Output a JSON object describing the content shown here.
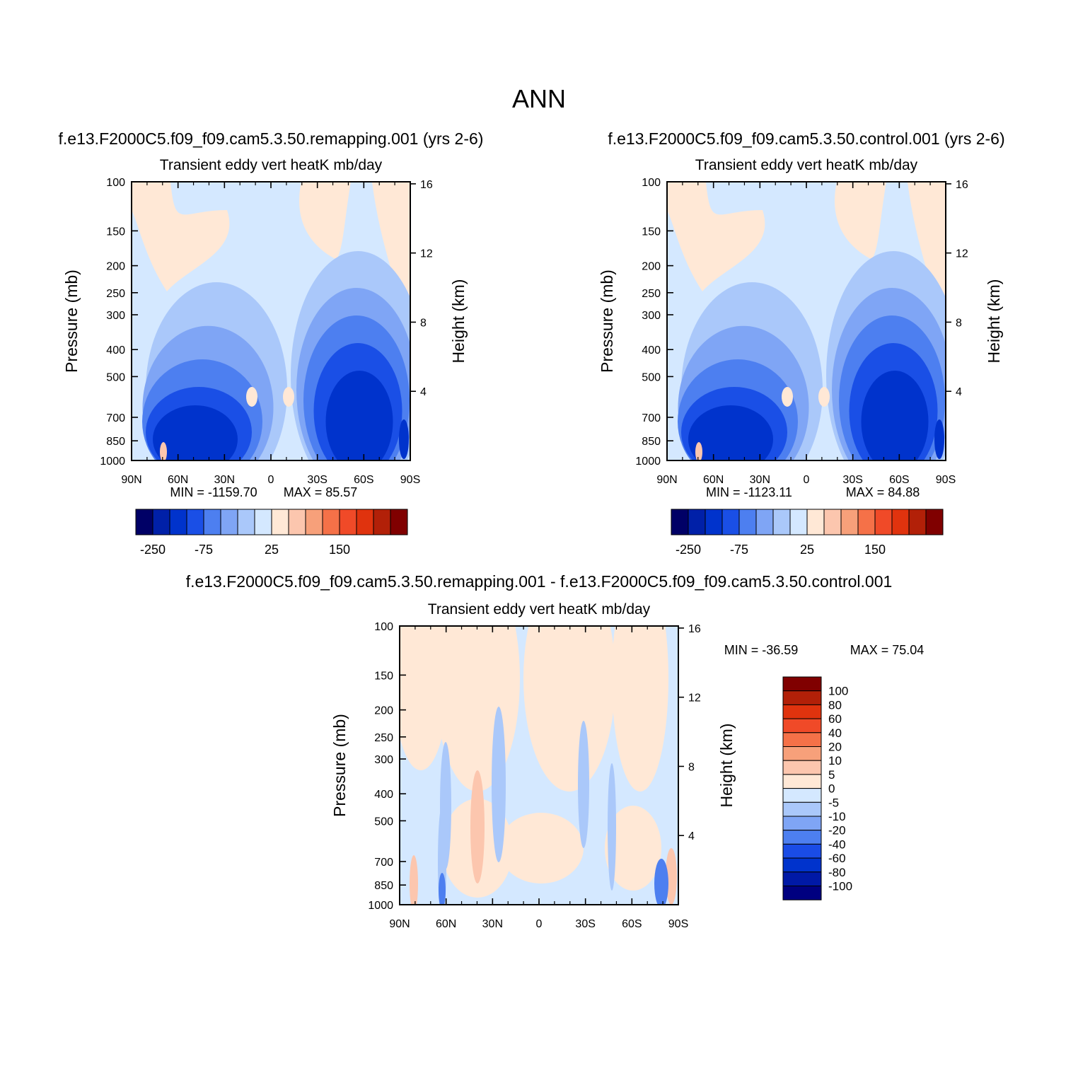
{
  "page_title": "ANN",
  "colors": {
    "main_scale": [
      "#000066",
      "#0020a8",
      "#0033cc",
      "#1a4fe6",
      "#4d7ff0",
      "#7fa5f5",
      "#aac8fa",
      "#d4e8ff",
      "#ffe8d6",
      "#fcc6ae",
      "#f7a07a",
      "#f57148",
      "#f04a28",
      "#e0330e",
      "#b22008",
      "#800000"
    ],
    "diff_scale": [
      "#000080",
      "#0019a6",
      "#0033cc",
      "#1a4ce6",
      "#4d7ff0",
      "#7fa5f5",
      "#aac8fa",
      "#d4e8ff",
      "#ffe8d6",
      "#fcc6ae",
      "#f7a07a",
      "#f57148",
      "#f04a28",
      "#e0330e",
      "#b22008",
      "#800000"
    ]
  },
  "chart_data": [
    {
      "type": "heatmap",
      "panel_id": "remapping",
      "case_title": "f.e13.F2000C5.f09_f09.cam5.3.50.remapping.001 (yrs 2-6)",
      "variable_title": "Transient eddy vert heatK mb/day",
      "xlabel": "",
      "ylabel": "Pressure (mb)",
      "ylabel_right": "Height (km)",
      "x_ticks": [
        "90N",
        "60N",
        "30N",
        "0",
        "30S",
        "60S",
        "90S"
      ],
      "y_ticks": [
        "100",
        "150",
        "200",
        "250",
        "300",
        "400",
        "500",
        "700",
        "850",
        "1000"
      ],
      "y_ticks_right": [
        "16",
        "12",
        "8",
        "4"
      ],
      "min_label": "MIN = -1159.70",
      "max_label": "MAX = 85.57",
      "min_value": -1159.7,
      "max_value": 85.57,
      "colorbar_labels": [
        "-250",
        "-75",
        "25",
        "150"
      ]
    },
    {
      "type": "heatmap",
      "panel_id": "control",
      "case_title": "f.e13.F2000C5.f09_f09.cam5.3.50.control.001 (yrs 2-6)",
      "variable_title": "Transient eddy vert heatK mb/day",
      "xlabel": "",
      "ylabel": "Pressure (mb)",
      "ylabel_right": "Height (km)",
      "x_ticks": [
        "90N",
        "60N",
        "30N",
        "0",
        "30S",
        "60S",
        "90S"
      ],
      "y_ticks": [
        "100",
        "150",
        "200",
        "250",
        "300",
        "400",
        "500",
        "700",
        "850",
        "1000"
      ],
      "y_ticks_right": [
        "16",
        "12",
        "8",
        "4"
      ],
      "min_label": "MIN = -1123.11",
      "max_label": "MAX = 84.88",
      "min_value": -1123.11,
      "max_value": 84.88,
      "colorbar_labels": [
        "-250",
        "-75",
        "25",
        "150"
      ]
    },
    {
      "type": "heatmap",
      "panel_id": "difference",
      "case_title": "f.e13.F2000C5.f09_f09.cam5.3.50.remapping.001 - f.e13.F2000C5.f09_f09.cam5.3.50.control.001",
      "variable_title": "Transient eddy vert heatK mb/day",
      "xlabel": "",
      "ylabel": "Pressure (mb)",
      "ylabel_right": "Height (km)",
      "x_ticks": [
        "90N",
        "60N",
        "30N",
        "0",
        "30S",
        "60S",
        "90S"
      ],
      "y_ticks": [
        "100",
        "150",
        "200",
        "250",
        "300",
        "400",
        "500",
        "700",
        "850",
        "1000"
      ],
      "y_ticks_right": [
        "16",
        "12",
        "8",
        "4"
      ],
      "min_label": "MIN = -36.59",
      "max_label": "MAX = 75.04",
      "min_value": -36.59,
      "max_value": 75.04,
      "colorbar_labels": [
        "100",
        "80",
        "60",
        "40",
        "20",
        "10",
        "5",
        "0",
        "-5",
        "-10",
        "-20",
        "-40",
        "-60",
        "-80",
        "-100"
      ]
    }
  ]
}
